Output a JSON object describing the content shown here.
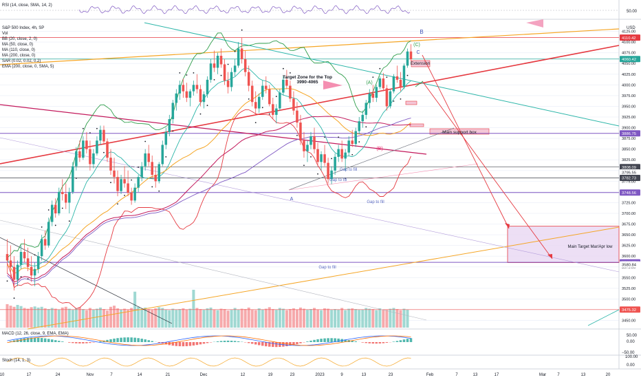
{
  "panels": {
    "rsi": {
      "label": "RSI (14, close, SMA, 14, 2)",
      "levels": [
        "50.00"
      ]
    },
    "price": {
      "legend": [
        "S&P 500 Index, 4h, SP",
        "Vol",
        "BB (20, close, 2, 0)",
        "MA (50, close, 0)",
        "MA (110, close, 0)",
        "MA (200, close, 0)",
        "SAR (0.02, 0.02, 0.2)",
        "EMA (200, close, 0, SMA, 5)"
      ],
      "currency": "USD"
    },
    "macd": {
      "label": "MACD (12, 26, close, 9, EMA, EMA)",
      "ticks": [
        "50.00",
        "0.00",
        "−50.00"
      ]
    },
    "stoch": {
      "label": "Stoch (14, 1, 3)",
      "ticks": [
        "100.00",
        "0.00"
      ]
    }
  },
  "annotations": {
    "target_zone_title": "Target Zone for the Top",
    "target_zone_range": "3990-4065",
    "extension": "Extension",
    "main_support": "Main support box",
    "gap_fill": "Gap to fill",
    "main_target": "Main Target Mar/Apr low",
    "wave_a_bottom": "A",
    "wave_a_paren": "(A)",
    "wave_b_paren": "(B)",
    "wave_c_paren": "(C)",
    "wave_c": "C",
    "wave_b_top": "B"
  },
  "colors": {
    "bull": "#26a69a",
    "bear": "#ef5350",
    "red_line": "#e53940",
    "orange": "#f5a524",
    "teal": "#2bb5a8",
    "purple": "#7e57c2",
    "bb": "#2e9d4a",
    "zone_fill": "#e9d7f3"
  },
  "chart_data": {
    "type": "candlestick",
    "title": "S&P 500 Index, 4h, SP",
    "y_axis": {
      "ticks": [
        "4125.00",
        "4100.00",
        "4075.00",
        "4050.00",
        "4025.00",
        "4000.00",
        "3975.00",
        "3950.00",
        "3925.00",
        "3900.00",
        "3875.00",
        "3850.00",
        "3825.00",
        "3800.00",
        "3775.00",
        "3750.00",
        "3725.00",
        "3700.00",
        "3675.00",
        "3650.00",
        "3625.00",
        "3600.00",
        "3575.00",
        "3550.00",
        "3525.00",
        "3500.00",
        "3475.00",
        "3450.00"
      ],
      "range": [
        3430,
        4150
      ],
      "price_labels": [
        "4110.42",
        "4060.42",
        "3886.75",
        "3808.09",
        "3795.55",
        "3782.73",
        "3748.56",
        "3585.75",
        "3580.84",
        "3475.32"
      ]
    },
    "x_axis": {
      "ticks": [
        "10",
        "17",
        "24",
        "Nov",
        "7",
        "14",
        "21",
        "Dec",
        "12",
        "19",
        "23",
        "2023",
        "9",
        "13",
        "23",
        "Feb",
        "7",
        "13",
        "17",
        "Mar",
        "7",
        "13",
        "20"
      ]
    },
    "key_levels": {
      "resistance_4110": 4110.42,
      "last_price": 4060.42,
      "level_3886": 3886.75,
      "level_3808": 3808.09,
      "level_3795": 3795.55,
      "level_3782": 3782.73,
      "level_3748": 3748.56,
      "level_3585": 3585.75,
      "level_3475": 3475.32
    },
    "zones": {
      "target_top": [
        3990,
        4065
      ],
      "main_target_box": [
        3585,
        3670
      ]
    },
    "ohlc": [
      [
        3605,
        3640,
        3560,
        3590
      ],
      [
        3590,
        3625,
        3548,
        3575
      ],
      [
        3575,
        3600,
        3520,
        3545
      ],
      [
        3545,
        3590,
        3530,
        3580
      ],
      [
        3580,
        3625,
        3570,
        3610
      ],
      [
        3610,
        3640,
        3585,
        3595
      ],
      [
        3595,
        3620,
        3565,
        3575
      ],
      [
        3575,
        3600,
        3540,
        3555
      ],
      [
        3555,
        3585,
        3530,
        3570
      ],
      [
        3570,
        3610,
        3560,
        3600
      ],
      [
        3600,
        3650,
        3590,
        3640
      ],
      [
        3640,
        3660,
        3615,
        3625
      ],
      [
        3625,
        3690,
        3620,
        3680
      ],
      [
        3680,
        3730,
        3670,
        3720
      ],
      [
        3720,
        3735,
        3690,
        3700
      ],
      [
        3700,
        3760,
        3695,
        3750
      ],
      [
        3750,
        3780,
        3730,
        3745
      ],
      [
        3745,
        3770,
        3710,
        3725
      ],
      [
        3725,
        3760,
        3700,
        3750
      ],
      [
        3750,
        3820,
        3745,
        3810
      ],
      [
        3810,
        3855,
        3800,
        3845
      ],
      [
        3845,
        3870,
        3820,
        3830
      ],
      [
        3830,
        3880,
        3825,
        3870
      ],
      [
        3870,
        3890,
        3840,
        3850
      ],
      [
        3850,
        3870,
        3800,
        3815
      ],
      [
        3815,
        3850,
        3805,
        3840
      ],
      [
        3840,
        3880,
        3835,
        3870
      ],
      [
        3870,
        3905,
        3860,
        3895
      ],
      [
        3895,
        3905,
        3860,
        3868
      ],
      [
        3868,
        3875,
        3820,
        3830
      ],
      [
        3830,
        3850,
        3790,
        3800
      ],
      [
        3800,
        3830,
        3770,
        3785
      ],
      [
        3785,
        3800,
        3740,
        3752
      ],
      [
        3752,
        3790,
        3745,
        3780
      ],
      [
        3780,
        3810,
        3760,
        3770
      ],
      [
        3770,
        3800,
        3740,
        3748
      ],
      [
        3748,
        3760,
        3720,
        3730
      ],
      [
        3730,
        3770,
        3725,
        3760
      ],
      [
        3760,
        3790,
        3750,
        3785
      ],
      [
        3785,
        3820,
        3775,
        3810
      ],
      [
        3810,
        3850,
        3800,
        3840
      ],
      [
        3840,
        3860,
        3810,
        3820
      ],
      [
        3820,
        3835,
        3780,
        3790
      ],
      [
        3790,
        3810,
        3760,
        3775
      ],
      [
        3775,
        3820,
        3770,
        3815
      ],
      [
        3815,
        3870,
        3810,
        3860
      ],
      [
        3860,
        3900,
        3850,
        3890
      ],
      [
        3890,
        3930,
        3880,
        3920
      ],
      [
        3920,
        3965,
        3910,
        3958
      ],
      [
        3958,
        3990,
        3940,
        3980
      ],
      [
        3980,
        4010,
        3965,
        4000
      ],
      [
        4000,
        4015,
        3970,
        3985
      ],
      [
        3985,
        4005,
        3960,
        3970
      ],
      [
        3970,
        3990,
        3950,
        3985
      ],
      [
        3985,
        4010,
        3975,
        4000
      ],
      [
        4000,
        4025,
        3980,
        3990
      ],
      [
        3990,
        4000,
        3950,
        3960
      ],
      [
        3960,
        3985,
        3945,
        3978
      ],
      [
        3978,
        4020,
        3970,
        4012
      ],
      [
        4012,
        4060,
        4005,
        4050
      ],
      [
        4050,
        4080,
        4030,
        4040
      ],
      [
        4040,
        4075,
        4025,
        4068
      ],
      [
        4068,
        4085,
        4040,
        4048
      ],
      [
        4048,
        4060,
        4000,
        4010
      ],
      [
        4010,
        4030,
        3980,
        3995
      ],
      [
        3995,
        4040,
        3985,
        4030
      ],
      [
        4030,
        4060,
        4020,
        4045
      ],
      [
        4045,
        4100,
        4040,
        4085
      ],
      [
        4085,
        4110,
        4050,
        4060
      ],
      [
        4060,
        4080,
        4020,
        4030
      ],
      [
        4030,
        4045,
        3985,
        3998
      ],
      [
        3998,
        4010,
        3950,
        3960
      ],
      [
        3960,
        3985,
        3930,
        3945
      ],
      [
        3945,
        3980,
        3935,
        3972
      ],
      [
        3972,
        4010,
        3965,
        3998
      ],
      [
        3998,
        4020,
        3980,
        3990
      ],
      [
        3990,
        4000,
        3950,
        3955
      ],
      [
        3955,
        3970,
        3920,
        3930
      ],
      [
        3930,
        3955,
        3910,
        3945
      ],
      [
        3945,
        3990,
        3940,
        3982
      ],
      [
        3982,
        4020,
        3975,
        4012
      ],
      [
        4012,
        4035,
        3990,
        3998
      ],
      [
        3998,
        4010,
        3960,
        3968
      ],
      [
        3968,
        3985,
        3930,
        3940
      ],
      [
        3940,
        3960,
        3900,
        3912
      ],
      [
        3912,
        3930,
        3860,
        3870
      ],
      [
        3870,
        3890,
        3830,
        3845
      ],
      [
        3845,
        3870,
        3820,
        3860
      ],
      [
        3860,
        3890,
        3850,
        3880
      ],
      [
        3880,
        3900,
        3840,
        3850
      ],
      [
        3850,
        3865,
        3810,
        3820
      ],
      [
        3820,
        3845,
        3800,
        3838
      ],
      [
        3838,
        3860,
        3810,
        3818
      ],
      [
        3818,
        3830,
        3770,
        3780
      ],
      [
        3780,
        3810,
        3768,
        3800
      ],
      [
        3800,
        3840,
        3790,
        3832
      ],
      [
        3832,
        3860,
        3820,
        3850
      ],
      [
        3850,
        3870,
        3820,
        3828
      ],
      [
        3828,
        3850,
        3800,
        3842
      ],
      [
        3842,
        3880,
        3835,
        3870
      ],
      [
        3870,
        3895,
        3855,
        3862
      ],
      [
        3862,
        3900,
        3855,
        3892
      ],
      [
        3892,
        3925,
        3885,
        3915
      ],
      [
        3915,
        3940,
        3900,
        3930
      ],
      [
        3930,
        3965,
        3920,
        3958
      ],
      [
        3958,
        3990,
        3945,
        3980
      ],
      [
        3980,
        4000,
        3960,
        3970
      ],
      [
        3970,
        4000,
        3960,
        3995
      ],
      [
        3995,
        4020,
        3990,
        4015
      ],
      [
        4015,
        4028,
        3985,
        3992
      ],
      [
        3992,
        4000,
        3940,
        3950
      ],
      [
        3950,
        3990,
        3945,
        3985
      ],
      [
        3985,
        4025,
        3980,
        4020
      ],
      [
        4020,
        4045,
        4005,
        4012
      ],
      [
        4012,
        4030,
        3985,
        3995
      ],
      [
        3995,
        4050,
        3990,
        4045
      ],
      [
        4045,
        4085,
        4040,
        4078
      ],
      [
        4078,
        4095,
        4055,
        4060
      ]
    ],
    "volume": [
      62,
      58,
      55,
      60,
      57,
      52,
      50,
      54,
      56,
      53,
      55,
      51,
      49,
      52,
      50,
      48,
      53,
      55,
      50,
      47,
      51,
      54,
      49,
      46,
      52,
      48,
      50,
      53,
      49,
      45,
      55,
      58,
      51,
      48,
      50,
      47,
      52,
      95,
      55,
      50,
      53,
      49,
      47,
      51,
      54,
      52,
      48,
      46,
      50,
      47,
      49,
      51,
      48,
      50,
      100,
      52,
      49,
      47,
      51,
      53,
      48,
      46,
      50,
      49,
      45,
      47,
      52,
      48,
      50,
      49,
      53,
      47,
      46,
      51,
      48,
      50,
      54,
      49,
      47,
      52,
      50,
      46,
      49,
      51,
      48,
      53,
      50,
      47,
      49,
      52,
      48,
      46,
      51,
      50,
      47,
      49,
      48,
      52,
      46,
      50,
      51,
      49,
      47,
      48,
      52,
      50,
      49,
      46,
      51,
      48,
      47,
      50,
      52,
      49,
      46,
      50,
      48
    ]
  }
}
